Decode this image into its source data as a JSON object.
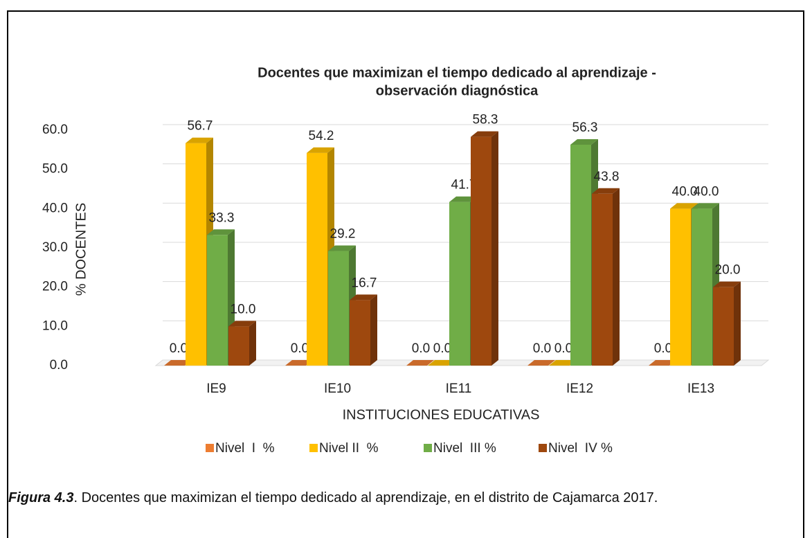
{
  "chart_data": {
    "type": "bar3d",
    "title": [
      "Docentes que maximizan el tiempo dedicado al aprendizaje -",
      "observación diagnóstica"
    ],
    "x_label": "INSTITUCIONES EDUCATIVAS",
    "y_label": "% DOCENTES",
    "categories": [
      "IE9",
      "IE10",
      "IE11",
      "IE12",
      "IE13"
    ],
    "series": [
      {
        "name": "Nivel  I  %",
        "color": "#ed7d31",
        "values": [
          0,
          0,
          0,
          0,
          0
        ],
        "value_labels": [
          "0.0",
          "0.0",
          "0.0",
          "0.0",
          "0.0"
        ]
      },
      {
        "name": "Nivel II  %",
        "color": "#ffc000",
        "values": [
          56.7,
          54.2,
          0,
          0,
          40
        ],
        "value_labels": [
          "56.7",
          "54.2",
          "0.0",
          "0.0",
          "40.0"
        ]
      },
      {
        "name": "Nivel  III %",
        "color": "#70ad47",
        "values": [
          33.3,
          29.2,
          41.7,
          56.3,
          40
        ],
        "value_labels": [
          "33.3",
          "29.2",
          "41.7",
          "56.3",
          "40.0"
        ]
      },
      {
        "name": "Nivel  IV %",
        "color": "#9e480e",
        "values": [
          10,
          16.7,
          58.3,
          43.8,
          20
        ],
        "value_labels": [
          "10.0",
          "16.7",
          "58.3",
          "43.8",
          "20.0"
        ]
      }
    ],
    "ylim": [
      0,
      60
    ],
    "yticks": [
      {
        "value": 0,
        "label": "0.0"
      },
      {
        "value": 10,
        "label": "10.0"
      },
      {
        "value": 20,
        "label": "20.0"
      },
      {
        "value": 30,
        "label": "30.0"
      },
      {
        "value": 40,
        "label": "40.0"
      },
      {
        "value": 50,
        "label": "50.0"
      },
      {
        "value": 60,
        "label": "60.0"
      }
    ],
    "grid": true,
    "legend": "bottom"
  },
  "caption": {
    "label": "Figura 4.3",
    "text": ". Docentes que maximizan el tiempo dedicado al aprendizaje, en el distrito de Cajamarca 2017."
  }
}
